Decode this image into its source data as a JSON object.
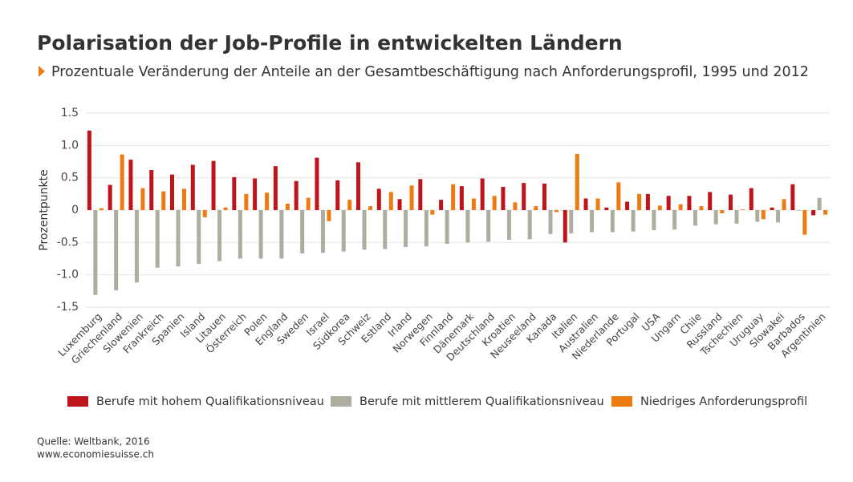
{
  "chart_data": {
    "type": "bar",
    "title": "Polarisation der Job-Profile in entwickelten Ländern",
    "subtitle": "Prozentuale Veränderung der Anteile an der Gesamtbeschäftigung nach Anforderungsprofil, 1995 und 2012",
    "y_label": "Prozentpunkte",
    "source": "Quelle: Weltbank, 2016",
    "source_url": "www.economiesuisse.ch",
    "categories": [
      "Luxemburg",
      "Griechenland",
      "Slowenien",
      "Frankreich",
      "Spanien",
      "Island",
      "Litauen",
      "Österreich",
      "Polen",
      "England",
      "Sweden",
      "Israel",
      "Südkorea",
      "Schweiz",
      "Estland",
      "Irland",
      "Norwegen",
      "Finnland",
      "Dänemark",
      "Deutschland",
      "Kroatien",
      "Neuseeland",
      "Kanada",
      "Italien",
      "Australien",
      "Niederlande",
      "Portugal",
      "USA",
      "Ungarn",
      "Chile",
      "Russland",
      "Tschechien",
      "Uruguay",
      "Slowakei",
      "Barbados",
      "Argentinien"
    ],
    "series": [
      {
        "name": "Berufe mit hohem Qualifikationsniveau",
        "color": "#c0141c",
        "values": [
          1.23,
          0.39,
          0.78,
          0.62,
          0.55,
          0.7,
          0.76,
          0.51,
          0.49,
          0.68,
          0.45,
          0.81,
          0.46,
          0.74,
          0.33,
          0.17,
          0.48,
          0.16,
          0.37,
          0.49,
          0.36,
          0.42,
          0.41,
          -0.5,
          0.18,
          0.04,
          0.13,
          0.25,
          0.22,
          0.22,
          0.28,
          0.24,
          0.34,
          0.04,
          0.4,
          -0.08
        ]
      },
      {
        "name": "Berufe mit mittlerem Qualifikationsniveau",
        "color": "#aeada0",
        "values": [
          -1.31,
          -1.24,
          -1.12,
          -0.89,
          -0.87,
          -0.83,
          -0.79,
          -0.75,
          -0.75,
          -0.75,
          -0.67,
          -0.66,
          -0.64,
          -0.61,
          -0.6,
          -0.57,
          -0.56,
          -0.52,
          -0.5,
          -0.49,
          -0.46,
          -0.45,
          -0.37,
          -0.36,
          -0.34,
          -0.34,
          -0.33,
          -0.31,
          -0.3,
          -0.24,
          -0.22,
          -0.21,
          -0.18,
          -0.19,
          -0.01,
          0.19
        ]
      },
      {
        "name": "Niedriges Anforderungsprofil",
        "color": "#ee7a12",
        "values": [
          0.03,
          0.86,
          0.34,
          0.29,
          0.33,
          -0.11,
          0.04,
          0.25,
          0.27,
          0.1,
          0.19,
          -0.17,
          0.16,
          0.06,
          0.28,
          0.38,
          -0.07,
          0.4,
          0.18,
          0.22,
          0.12,
          0.06,
          -0.03,
          0.87,
          0.18,
          0.43,
          0.25,
          0.07,
          0.09,
          0.06,
          -0.05,
          0.01,
          -0.14,
          0.17,
          -0.38,
          -0.07
        ]
      }
    ],
    "ylim": [
      -1.5,
      1.5
    ],
    "yticks": [
      1.5,
      {
        "value": 1.0,
        "label": "1.0"
      },
      0.5,
      0,
      -0.5,
      {
        "value": -1.0,
        "label": "-1.0"
      },
      -1.5
    ],
    "grid": true
  }
}
